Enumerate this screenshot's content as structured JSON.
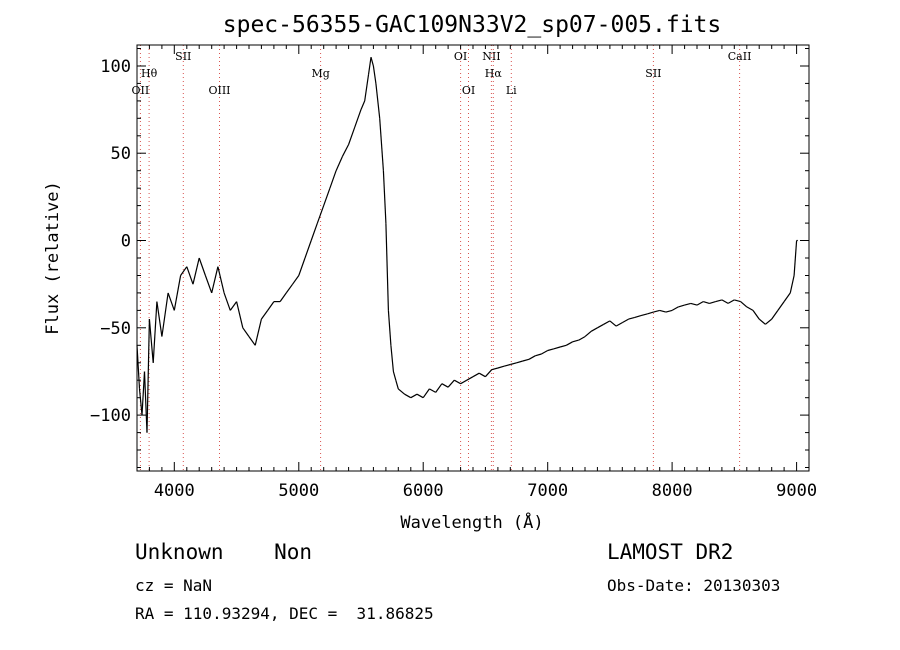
{
  "chart_data": {
    "type": "line",
    "title": "spec-56355-GAC109N33V2_sp07-005.fits",
    "xlabel": "Wavelength (Å)",
    "ylabel": "Flux (relative)",
    "xlim": [
      3700,
      9100
    ],
    "ylim": [
      -132,
      112
    ],
    "x_ticks": [
      4000,
      5000,
      6000,
      7000,
      8000,
      9000
    ],
    "y_ticks": [
      -100,
      -50,
      0,
      50,
      100
    ],
    "x_tick_labels": [
      "4000",
      "5000",
      "6000",
      "7000",
      "8000",
      "9000"
    ],
    "y_tick_labels": [
      "−100",
      "−50",
      "0",
      "50",
      "100"
    ],
    "grid": false,
    "lines": [
      {
        "name": "OII",
        "x": 3727
      },
      {
        "name": "Hθ",
        "x": 3797
      },
      {
        "name": "SII",
        "x": 4072
      },
      {
        "name": "OIII",
        "x": 4363
      },
      {
        "name": "Mg",
        "x": 5175
      },
      {
        "name": "OI",
        "x": 6300
      },
      {
        "name": "OI",
        "x": 6364
      },
      {
        "name": "NII",
        "x": 6548
      },
      {
        "name": "Hα",
        "x": 6563
      },
      {
        "name": "Li",
        "x": 6708
      },
      {
        "name": "SII",
        "x": 7850
      },
      {
        "name": "CaII",
        "x": 8542
      }
    ],
    "series": [
      {
        "x": [
          3700,
          3720,
          3740,
          3760,
          3780,
          3800,
          3830,
          3860,
          3900,
          3950,
          4000,
          4050,
          4100,
          4150,
          4200,
          4250,
          4300,
          4350,
          4400,
          4450,
          4500,
          4550,
          4600,
          4650,
          4700,
          4750,
          4800,
          4850,
          4900,
          4950,
          5000,
          5050,
          5100,
          5150,
          5200,
          5250,
          5300,
          5350,
          5400,
          5450,
          5500,
          5530,
          5560,
          5580,
          5600,
          5620,
          5650,
          5680,
          5700,
          5720,
          5740,
          5760,
          5780,
          5800,
          5850,
          5900,
          5950,
          6000,
          6050,
          6100,
          6150,
          6200,
          6250,
          6300,
          6350,
          6400,
          6450,
          6500,
          6550,
          6600,
          6650,
          6700,
          6750,
          6800,
          6850,
          6900,
          6950,
          7000,
          7050,
          7100,
          7150,
          7200,
          7250,
          7300,
          7350,
          7400,
          7450,
          7500,
          7550,
          7600,
          7650,
          7700,
          7750,
          7800,
          7850,
          7900,
          7950,
          8000,
          8050,
          8100,
          8150,
          8200,
          8250,
          8300,
          8350,
          8400,
          8450,
          8500,
          8550,
          8600,
          8650,
          8700,
          8750,
          8800,
          8850,
          8900,
          8950,
          8980,
          9000,
          9010
        ],
        "y": [
          -60,
          -85,
          -100,
          -75,
          -110,
          -45,
          -70,
          -35,
          -55,
          -30,
          -40,
          -20,
          -15,
          -25,
          -10,
          -20,
          -30,
          -15,
          -30,
          -40,
          -35,
          -50,
          -55,
          -60,
          -45,
          -40,
          -35,
          -35,
          -30,
          -25,
          -20,
          -10,
          0,
          10,
          20,
          30,
          40,
          48,
          55,
          65,
          75,
          80,
          95,
          105,
          100,
          90,
          70,
          40,
          10,
          -40,
          -60,
          -75,
          -80,
          -85,
          -88,
          -90,
          -88,
          -90,
          -85,
          -87,
          -82,
          -84,
          -80,
          -82,
          -80,
          -78,
          -76,
          -78,
          -74,
          -73,
          -72,
          -71,
          -70,
          -69,
          -68,
          -66,
          -65,
          -63,
          -62,
          -61,
          -60,
          -58,
          -57,
          -55,
          -52,
          -50,
          -48,
          -46,
          -49,
          -47,
          -45,
          -44,
          -43,
          -42,
          -41,
          -40,
          -41,
          -40,
          -38,
          -37,
          -36,
          -37,
          -35,
          -36,
          -35,
          -34,
          -36,
          -34,
          -35,
          -38,
          -40,
          -45,
          -48,
          -45,
          -40,
          -35,
          -30,
          -20,
          0,
          0
        ]
      }
    ]
  },
  "footer": {
    "left_line1": "Unknown    Non",
    "left_line2": "cz = NaN",
    "left_line3": "RA = 110.93294, DEC =  31.86825",
    "right_line1": "LAMOST DR2",
    "right_line2": "Obs-Date: 20130303"
  }
}
